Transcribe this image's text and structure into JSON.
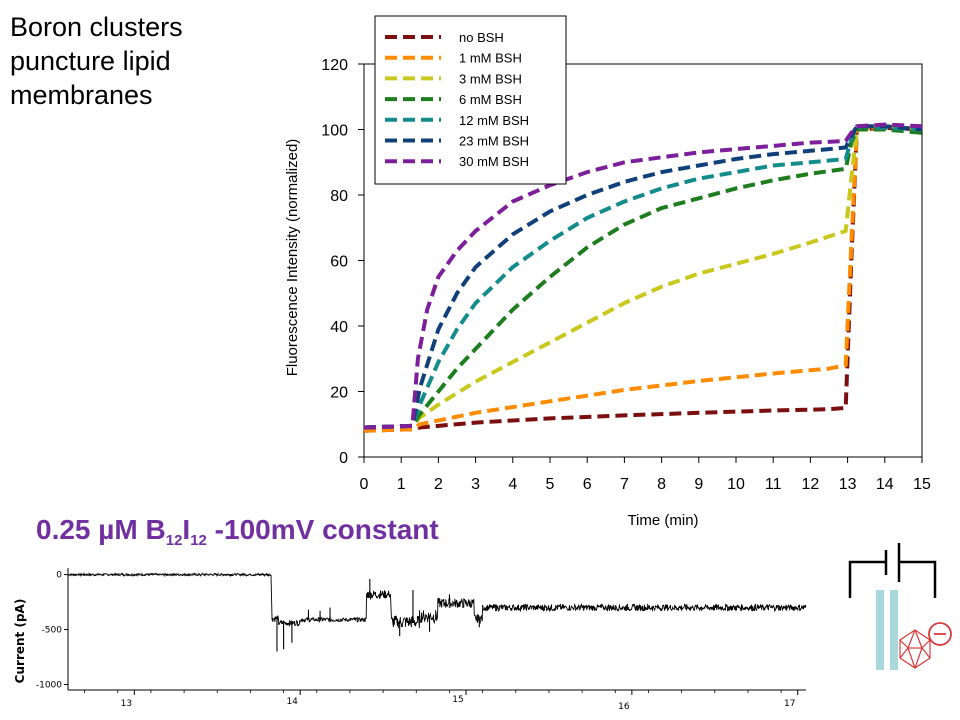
{
  "slide": {
    "title_lines": [
      "Boron clusters",
      "puncture lipid",
      "membranes"
    ],
    "trace_heading": {
      "prefix": "0.25 µM B",
      "sub1": "12",
      "mid": "I",
      "sub2": "12",
      "suffix": " -100mV constant"
    }
  },
  "chart_data": [
    {
      "type": "line",
      "title": "",
      "xlabel": "Time (min)",
      "ylabel": "Fluorescence Intensity (normalized)",
      "xlim": [
        0,
        15
      ],
      "ylim": [
        0,
        120
      ],
      "xticks": [
        0,
        1,
        2,
        3,
        4,
        5,
        6,
        7,
        8,
        9,
        10,
        11,
        12,
        13,
        14,
        15
      ],
      "yticks": [
        0,
        20,
        40,
        60,
        80,
        100,
        120
      ],
      "grid": false,
      "legend_position": "top",
      "series": [
        {
          "name": "no BSH",
          "color": "#7b0f0f",
          "points": [
            [
              0,
              8
            ],
            [
              1.3,
              8.5
            ],
            [
              1.5,
              9
            ],
            [
              3,
              10.5
            ],
            [
              5,
              11.8
            ],
            [
              7,
              12.7
            ],
            [
              9,
              13.5
            ],
            [
              11,
              14.2
            ],
            [
              12.5,
              14.6
            ],
            [
              12.95,
              15
            ],
            [
              13.1,
              60
            ],
            [
              13.25,
              100
            ],
            [
              14,
              100.5
            ],
            [
              15,
              100
            ]
          ]
        },
        {
          "name": "1 mM BSH",
          "color": "#ff8c00",
          "points": [
            [
              0,
              8
            ],
            [
              1.3,
              8.5
            ],
            [
              1.5,
              10
            ],
            [
              3,
              13.5
            ],
            [
              5,
              17
            ],
            [
              7,
              20.5
            ],
            [
              9,
              23.2
            ],
            [
              11,
              25.5
            ],
            [
              12.5,
              27
            ],
            [
              12.95,
              28
            ],
            [
              13.1,
              65
            ],
            [
              13.25,
              100
            ],
            [
              14,
              101
            ],
            [
              15,
              100
            ]
          ]
        },
        {
          "name": "3 mM BSH",
          "color": "#c8c81e",
          "points": [
            [
              0,
              9
            ],
            [
              1.3,
              9.5
            ],
            [
              1.5,
              12
            ],
            [
              2,
              16
            ],
            [
              3,
              23
            ],
            [
              4,
              29
            ],
            [
              5,
              35
            ],
            [
              6,
              41
            ],
            [
              7,
              47
            ],
            [
              8,
              52
            ],
            [
              9,
              56
            ],
            [
              10,
              59
            ],
            [
              11,
              62
            ],
            [
              12,
              65.5
            ],
            [
              12.95,
              69
            ],
            [
              13.1,
              85
            ],
            [
              13.25,
              100
            ],
            [
              14,
              100.5
            ],
            [
              15,
              100
            ]
          ]
        },
        {
          "name": "6 mM BSH",
          "color": "#1e7d1e",
          "points": [
            [
              0,
              9
            ],
            [
              1.3,
              9.5
            ],
            [
              1.5,
              13
            ],
            [
              2,
              20
            ],
            [
              2.5,
              27
            ],
            [
              3,
              33
            ],
            [
              4,
              45
            ],
            [
              5,
              55
            ],
            [
              6,
              64
            ],
            [
              7,
              71
            ],
            [
              8,
              76
            ],
            [
              9,
              79
            ],
            [
              10,
              82
            ],
            [
              11,
              84.5
            ],
            [
              12,
              86.5
            ],
            [
              12.95,
              88
            ],
            [
              13.1,
              96
            ],
            [
              13.25,
              100
            ],
            [
              14,
              100
            ],
            [
              15,
              99
            ]
          ]
        },
        {
          "name": "12 mM BSH",
          "color": "#148c8c",
          "points": [
            [
              0,
              9
            ],
            [
              1.3,
              9.5
            ],
            [
              1.5,
              16
            ],
            [
              2,
              29
            ],
            [
              2.5,
              39
            ],
            [
              3,
              47
            ],
            [
              4,
              58
            ],
            [
              5,
              66
            ],
            [
              6,
              73
            ],
            [
              7,
              78
            ],
            [
              8,
              82
            ],
            [
              9,
              85
            ],
            [
              10,
              87
            ],
            [
              11,
              89
            ],
            [
              12,
              90
            ],
            [
              12.95,
              91
            ],
            [
              13.1,
              97
            ],
            [
              13.25,
              101
            ],
            [
              14,
              100.5
            ],
            [
              15,
              100
            ]
          ]
        },
        {
          "name": "23 mM BSH",
          "color": "#103f7a",
          "points": [
            [
              0,
              9
            ],
            [
              1.3,
              9.5
            ],
            [
              1.5,
              21
            ],
            [
              2,
              39
            ],
            [
              2.5,
              50
            ],
            [
              3,
              58
            ],
            [
              4,
              68
            ],
            [
              5,
              75
            ],
            [
              6,
              80
            ],
            [
              7,
              84
            ],
            [
              8,
              87
            ],
            [
              9,
              89
            ],
            [
              10,
              91
            ],
            [
              11,
              92.5
            ],
            [
              12,
              93.5
            ],
            [
              12.95,
              94.5
            ],
            [
              13.1,
              98
            ],
            [
              13.25,
              101
            ],
            [
              14,
              101
            ],
            [
              15,
              100
            ]
          ]
        },
        {
          "name": "30 mM BSH",
          "color": "#7d1e9b",
          "points": [
            [
              0,
              9
            ],
            [
              1.3,
              9.5
            ],
            [
              1.45,
              30
            ],
            [
              1.7,
              45
            ],
            [
              2,
              55
            ],
            [
              2.5,
              63
            ],
            [
              3,
              69
            ],
            [
              4,
              78
            ],
            [
              5,
              83
            ],
            [
              6,
              87
            ],
            [
              7,
              90
            ],
            [
              8,
              91.5
            ],
            [
              9,
              93
            ],
            [
              10,
              94
            ],
            [
              11,
              95
            ],
            [
              12,
              96
            ],
            [
              12.95,
              96.5
            ],
            [
              13.1,
              99
            ],
            [
              13.25,
              101
            ],
            [
              14,
              101.5
            ],
            [
              15,
              101
            ]
          ]
        }
      ]
    },
    {
      "type": "line",
      "title": "",
      "xlabel": "",
      "ylabel": "Current (pA)",
      "xlim": [
        12.6,
        17.05
      ],
      "ylim": [
        -1050,
        60
      ],
      "xticks": [
        13,
        14,
        15,
        16,
        17
      ],
      "yticks": [
        0,
        -500,
        -1000
      ],
      "grid": false,
      "series": [
        {
          "name": "",
          "color": "#000000",
          "segments": [
            {
              "x": [
                12.6,
                13.83
              ],
              "y": 0,
              "noise": 10
            },
            {
              "x": [
                13.83,
                13.87
              ],
              "y": -400,
              "noise": 30
            },
            {
              "x": [
                13.87,
                14.0
              ],
              "y": -440,
              "noise": 25
            },
            {
              "x": [
                14.0,
                14.4
              ],
              "y": -410,
              "noise": 20
            },
            {
              "x": [
                14.4,
                14.55
              ],
              "y": -180,
              "noise": 40
            },
            {
              "x": [
                14.55,
                14.72
              ],
              "y": -430,
              "noise": 60
            },
            {
              "x": [
                14.72,
                14.83
              ],
              "y": -380,
              "noise": 60
            },
            {
              "x": [
                14.83,
                15.05
              ],
              "y": -260,
              "noise": 45
            },
            {
              "x": [
                15.05,
                15.1
              ],
              "y": -400,
              "noise": 40
            },
            {
              "x": [
                15.1,
                17.05
              ],
              "y": -300,
              "noise": 30
            }
          ],
          "spikes": [
            {
              "x": 13.86,
              "y": -700
            },
            {
              "x": 13.9,
              "y": -680
            },
            {
              "x": 13.95,
              "y": -620
            },
            {
              "x": 14.05,
              "y": -320
            },
            {
              "x": 14.12,
              "y": -330
            },
            {
              "x": 14.18,
              "y": -300
            },
            {
              "x": 14.42,
              "y": -40
            },
            {
              "x": 14.6,
              "y": -560
            },
            {
              "x": 14.68,
              "y": -140
            },
            {
              "x": 14.78,
              "y": -520
            },
            {
              "x": 14.9,
              "y": -180
            },
            {
              "x": 15.08,
              "y": -480
            }
          ]
        }
      ]
    }
  ]
}
